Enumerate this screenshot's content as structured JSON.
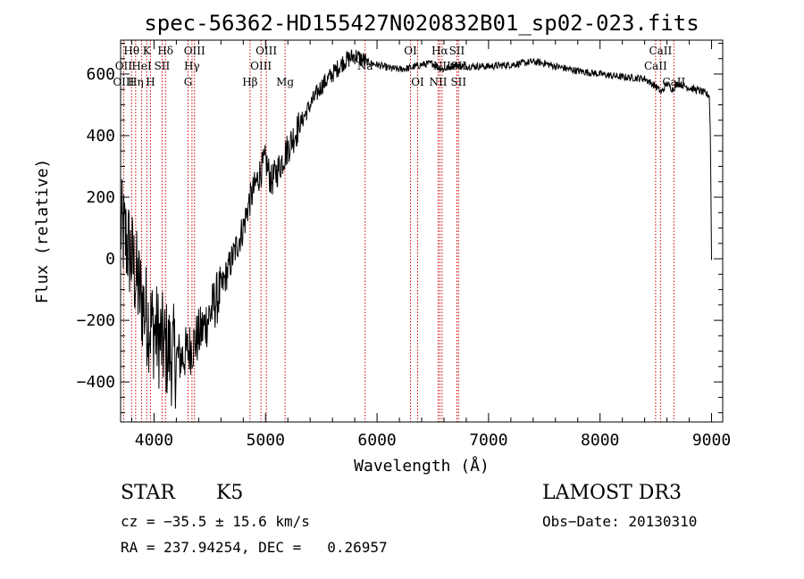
{
  "chart_data": {
    "type": "line",
    "title": "spec-56362-HD155427N020832B01_sp02-023.fits",
    "xlabel": "Wavelength (Å)",
    "ylabel": "Flux (relative)",
    "xlim": [
      3700,
      9100
    ],
    "ylim": [
      -530,
      710
    ],
    "xticks": [
      4000,
      5000,
      6000,
      7000,
      8000,
      9000
    ],
    "xtick_labels": [
      "4000",
      "5000",
      "6000",
      "7000",
      "8000",
      "9000"
    ],
    "yticks": [
      -400,
      -200,
      0,
      200,
      400,
      600
    ],
    "ytick_labels": [
      "−400",
      "−200",
      "0",
      "200",
      "400",
      "600"
    ],
    "series": [
      {
        "name": "Flux",
        "x": [
          3700,
          3750,
          3800,
          3850,
          3900,
          3950,
          4000,
          4050,
          4100,
          4150,
          4200,
          4250,
          4300,
          4350,
          4400,
          4450,
          4500,
          4600,
          4700,
          4800,
          4850,
          4900,
          4950,
          5000,
          5050,
          5100,
          5150,
          5200,
          5300,
          5400,
          5500,
          5600,
          5700,
          5800,
          5850,
          5900,
          6000,
          6100,
          6200,
          6300,
          6400,
          6500,
          6550,
          6600,
          6700,
          6800,
          7000,
          7200,
          7400,
          7500,
          7600,
          7800,
          8000,
          8200,
          8400,
          8500,
          8550,
          8600,
          8650,
          8700,
          8800,
          8900,
          8980,
          8990,
          9000
        ],
        "y": [
          100,
          60,
          0,
          -80,
          -150,
          -200,
          -230,
          -260,
          -290,
          -310,
          -320,
          -320,
          -300,
          -280,
          -250,
          -220,
          -180,
          -100,
          0,
          100,
          180,
          230,
          280,
          320,
          250,
          280,
          320,
          360,
          430,
          500,
          560,
          600,
          640,
          660,
          650,
          640,
          630,
          620,
          615,
          620,
          630,
          635,
          620,
          615,
          630,
          625,
          625,
          630,
          640,
          635,
          625,
          610,
          600,
          590,
          585,
          560,
          540,
          570,
          550,
          570,
          555,
          545,
          530,
          400,
          0
        ]
      }
    ],
    "spectral_lines": [
      {
        "label": "Hθ",
        "x": 3798,
        "row": 0
      },
      {
        "label": "OII",
        "x": 3727,
        "row": 1
      },
      {
        "label": "OIII",
        "x": 3727,
        "row": 2
      },
      {
        "label": "K",
        "x": 3934,
        "row": 0
      },
      {
        "label": "HeI",
        "x": 3889,
        "row": 1
      },
      {
        "label": "Hη",
        "x": 3835,
        "row": 2
      },
      {
        "label": "H",
        "x": 3968,
        "row": 2
      },
      {
        "label": "Hδ",
        "x": 4102,
        "row": 0
      },
      {
        "label": "SII",
        "x": 4072,
        "row": 1
      },
      {
        "label": "OIII",
        "x": 4363,
        "row": 0
      },
      {
        "label": "Hγ",
        "x": 4340,
        "row": 1
      },
      {
        "label": "G",
        "x": 4305,
        "row": 2
      },
      {
        "label": "OIII",
        "x": 5007,
        "row": 0
      },
      {
        "label": "OIII",
        "x": 4959,
        "row": 1
      },
      {
        "label": "Hβ",
        "x": 4861,
        "row": 2
      },
      {
        "label": "Mg",
        "x": 5175,
        "row": 2
      },
      {
        "label": "Na",
        "x": 5893,
        "row": 1
      },
      {
        "label": "OI",
        "x": 6300,
        "row": 0
      },
      {
        "label": "OI",
        "x": 6364,
        "row": 2
      },
      {
        "label": "Hα",
        "x": 6563,
        "row": 0
      },
      {
        "label": "NII",
        "x": 6583,
        "row": 1
      },
      {
        "label": "NII",
        "x": 6548,
        "row": 2
      },
      {
        "label": "SII",
        "x": 6716,
        "row": 0
      },
      {
        "label": "SII",
        "x": 6731,
        "row": 1
      },
      {
        "label": "SII",
        "x": 6731,
        "row": 2
      },
      {
        "label": "CaII",
        "x": 8542,
        "row": 0
      },
      {
        "label": "CaII",
        "x": 8498,
        "row": 1
      },
      {
        "label": "CaII",
        "x": 8662,
        "row": 2
      }
    ],
    "grid": false,
    "legend": "none"
  },
  "info": {
    "class_label": "STAR",
    "subclass": "K5",
    "survey": "LAMOST DR3",
    "redshift": "cz = −35.5 ± 15.6 km/s",
    "obs_date": "Obs−Date: 20130310",
    "coords": "RA = 237.94254, DEC =   0.26957"
  },
  "colors": {
    "spectrum": "#000000",
    "line_marker": "#cc0000",
    "axes": "#000000"
  }
}
